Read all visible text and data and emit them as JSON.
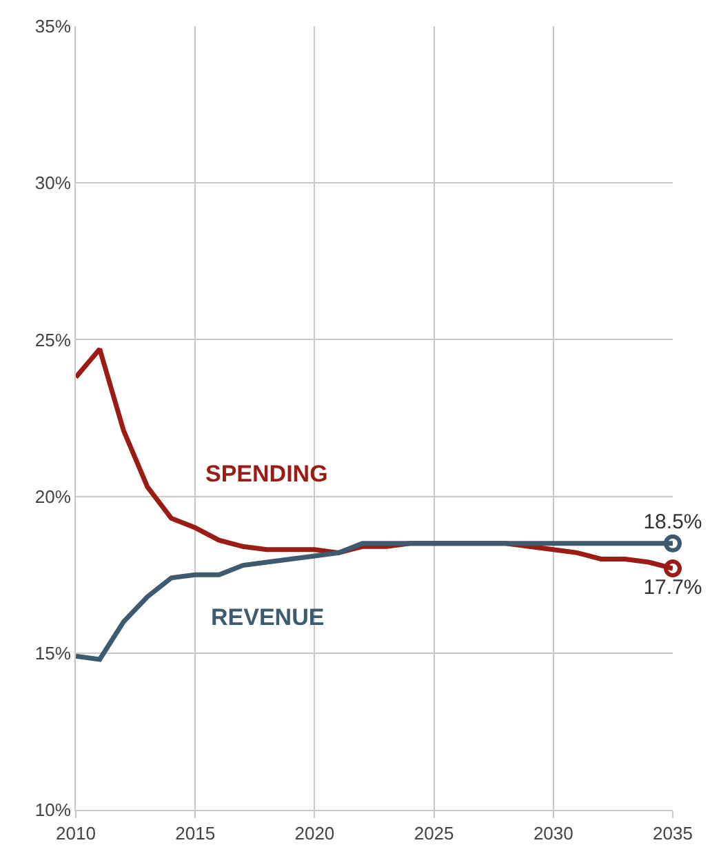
{
  "chart_data": {
    "type": "line",
    "x": [
      2010,
      2011,
      2012,
      2013,
      2014,
      2015,
      2016,
      2017,
      2018,
      2019,
      2020,
      2021,
      2022,
      2023,
      2024,
      2025,
      2026,
      2027,
      2028,
      2029,
      2030,
      2031,
      2032,
      2033,
      2034,
      2035
    ],
    "series": [
      {
        "name": "SPENDING",
        "color": "#9b1c14",
        "values": [
          23.8,
          24.7,
          22.1,
          20.3,
          19.3,
          19.0,
          18.6,
          18.4,
          18.3,
          18.3,
          18.3,
          18.2,
          18.4,
          18.4,
          18.5,
          18.5,
          18.5,
          18.5,
          18.5,
          18.4,
          18.3,
          18.2,
          18.0,
          18.0,
          17.9,
          17.7
        ],
        "value_labels": [
          null,
          null,
          null,
          null,
          null,
          null,
          null,
          null,
          null,
          null,
          null,
          null,
          null,
          null,
          null,
          null,
          null,
          null,
          null,
          null,
          null,
          null,
          null,
          null,
          null,
          "17.7%"
        ]
      },
      {
        "name": "REVENUE",
        "color": "#3d5a6e",
        "values": [
          14.9,
          14.8,
          16.0,
          16.8,
          17.4,
          17.5,
          17.5,
          17.8,
          17.9,
          18.0,
          18.1,
          18.2,
          18.5,
          18.5,
          18.5,
          18.5,
          18.5,
          18.5,
          18.5,
          18.5,
          18.5,
          18.5,
          18.5,
          18.5,
          18.5,
          18.5
        ],
        "value_labels": [
          null,
          null,
          null,
          null,
          null,
          null,
          null,
          null,
          null,
          null,
          null,
          null,
          null,
          null,
          null,
          null,
          null,
          null,
          null,
          null,
          null,
          null,
          null,
          null,
          null,
          "18.5%"
        ]
      }
    ],
    "xlim": [
      2010,
      2035
    ],
    "xticks": [
      2010,
      2015,
      2020,
      2025,
      2030,
      2035
    ],
    "ylim": [
      10,
      35
    ],
    "yticks": [
      {
        "value": 10,
        "label": "10%"
      },
      {
        "value": 15,
        "label": "15%"
      },
      {
        "value": 20,
        "label": "20%"
      },
      {
        "value": 25,
        "label": "25%"
      },
      {
        "value": 30,
        "label": "30%"
      },
      {
        "value": 35,
        "label": "35%"
      }
    ],
    "grid": true,
    "legend": false,
    "line_style": "solid"
  }
}
